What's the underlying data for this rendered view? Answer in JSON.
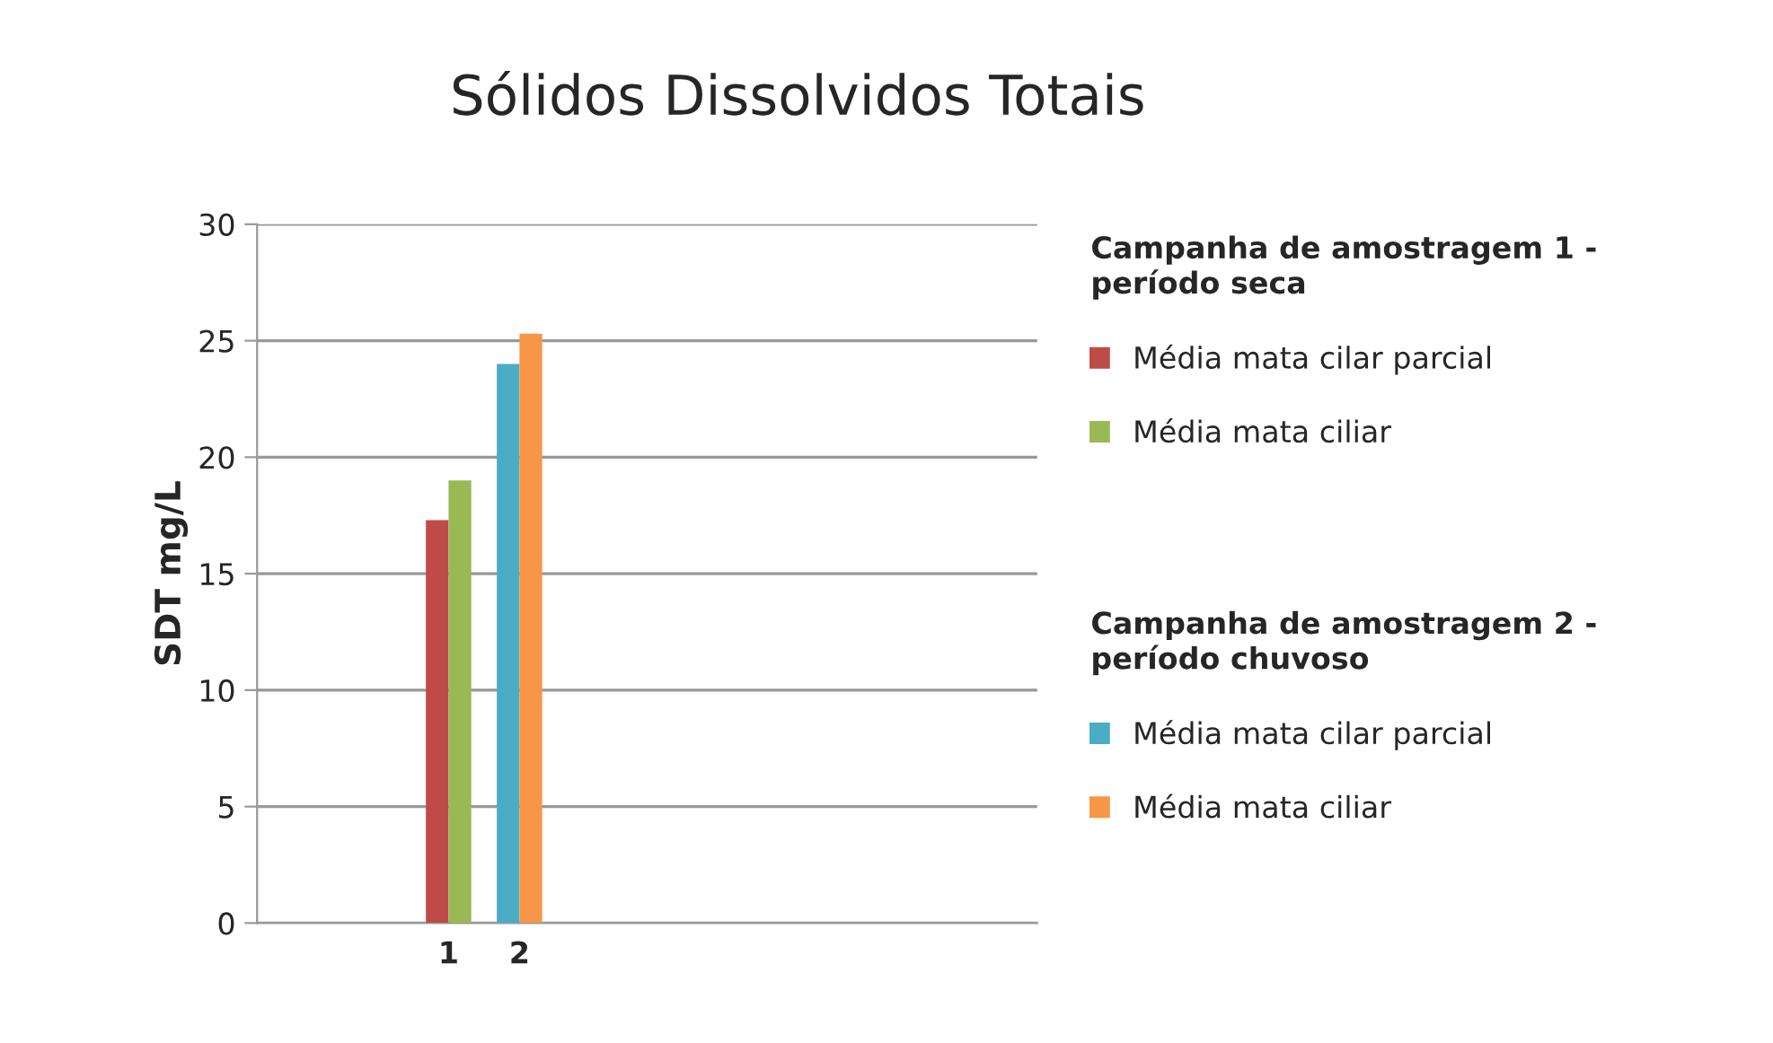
{
  "chart_data": {
    "type": "bar",
    "title": "Sólidos Dissolvidos Totais",
    "ylabel": "SDT mg/L",
    "categories": [
      "1",
      "2"
    ],
    "series": [
      {
        "name": "Média mata cilar parcial",
        "color": "#be4b48",
        "values": [
          17.3,
          null
        ]
      },
      {
        "name": "Média mata ciliar",
        "color": "#98b954",
        "values": [
          19.0,
          null
        ]
      },
      {
        "name": "Média mata cilar parcial",
        "color": "#4bacc6",
        "values": [
          null,
          24.0
        ]
      },
      {
        "name": "Média mata ciliar",
        "color": "#f79646",
        "values": [
          null,
          25.3
        ]
      }
    ],
    "annotations": [
      "Campanha de amostragem 1 - período seca",
      "Campanha de amostragem 2 - período chuvoso"
    ],
    "ylim": [
      0,
      30
    ],
    "yticks": [
      0,
      5,
      10,
      15,
      20,
      25,
      30
    ],
    "grid": "y",
    "legend": "right"
  }
}
